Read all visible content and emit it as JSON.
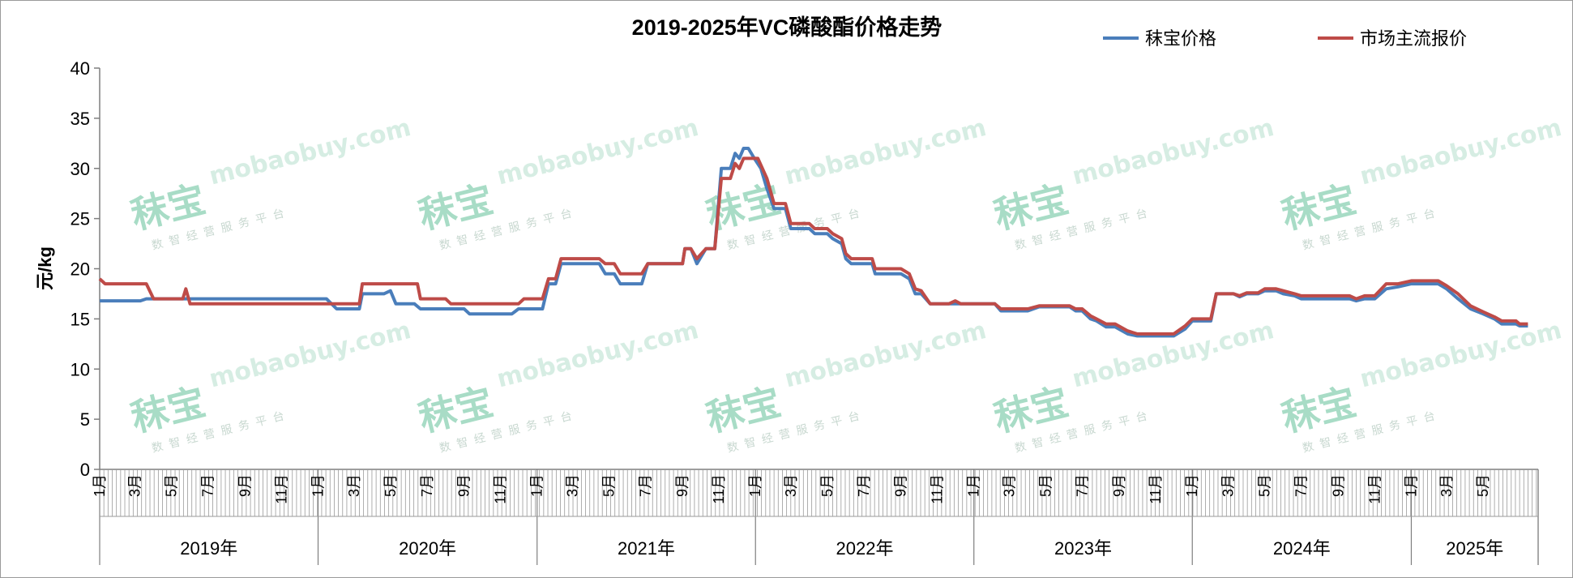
{
  "chart_data": {
    "type": "line",
    "title": "2019-2025年VC磷酸酯价格走势",
    "ylabel": "元/kg",
    "ylim": [
      0,
      40
    ],
    "yticks": [
      "0",
      "5",
      "10",
      "15",
      "20",
      "25",
      "30",
      "35",
      "40"
    ],
    "grid": false,
    "legend_position": "top-right",
    "x_month_labels": [
      "1月",
      "3月",
      "5月",
      "7月",
      "9月",
      "11月"
    ],
    "years": [
      "2019年",
      "2020年",
      "2021年",
      "2022年",
      "2023年",
      "2024年",
      "2025年"
    ],
    "x_range": [
      "2019-01",
      "2025-07"
    ],
    "series": [
      {
        "name": "秣宝价格",
        "color": "#4a7ebb",
        "points": [
          [
            "2019-01-01",
            16.8
          ],
          [
            "2019-03-10",
            16.8
          ],
          [
            "2019-03-20",
            17.0
          ],
          [
            "2019-06-01",
            17.0
          ],
          [
            "2020-01-15",
            17.0
          ],
          [
            "2020-02-01",
            16.0
          ],
          [
            "2020-03-10",
            16.0
          ],
          [
            "2020-03-15",
            17.5
          ],
          [
            "2020-04-20",
            17.5
          ],
          [
            "2020-05-01",
            17.8
          ],
          [
            "2020-05-10",
            16.5
          ],
          [
            "2020-06-10",
            16.5
          ],
          [
            "2020-06-20",
            16.0
          ],
          [
            "2020-09-01",
            16.0
          ],
          [
            "2020-09-10",
            15.5
          ],
          [
            "2020-11-20",
            15.5
          ],
          [
            "2020-12-01",
            16.0
          ],
          [
            "2021-01-10",
            16.0
          ],
          [
            "2021-01-20",
            18.5
          ],
          [
            "2021-02-01",
            18.5
          ],
          [
            "2021-02-10",
            20.5
          ],
          [
            "2021-04-15",
            20.5
          ],
          [
            "2021-04-25",
            19.5
          ],
          [
            "2021-05-10",
            19.5
          ],
          [
            "2021-05-20",
            18.5
          ],
          [
            "2021-06-25",
            18.5
          ],
          [
            "2021-07-05",
            20.5
          ],
          [
            "2021-09-01",
            20.5
          ],
          [
            "2021-09-05",
            22.0
          ],
          [
            "2021-09-15",
            22.0
          ],
          [
            "2021-09-25",
            20.5
          ],
          [
            "2021-10-10",
            22.0
          ],
          [
            "2021-10-25",
            22.0
          ],
          [
            "2021-11-05",
            30.0
          ],
          [
            "2021-11-20",
            30.0
          ],
          [
            "2021-11-28",
            31.5
          ],
          [
            "2021-12-05",
            31.0
          ],
          [
            "2021-12-12",
            32.0
          ],
          [
            "2021-12-20",
            32.0
          ],
          [
            "2021-12-30",
            31.0
          ],
          [
            "2022-01-10",
            30.0
          ],
          [
            "2022-01-20",
            28.0
          ],
          [
            "2022-02-01",
            26.0
          ],
          [
            "2022-02-20",
            26.0
          ],
          [
            "2022-03-01",
            24.0
          ],
          [
            "2022-04-01",
            24.0
          ],
          [
            "2022-04-10",
            23.5
          ],
          [
            "2022-05-01",
            23.5
          ],
          [
            "2022-05-10",
            23.0
          ],
          [
            "2022-05-25",
            22.5
          ],
          [
            "2022-06-01",
            21.0
          ],
          [
            "2022-06-10",
            20.5
          ],
          [
            "2022-07-15",
            20.5
          ],
          [
            "2022-07-20",
            19.5
          ],
          [
            "2022-09-01",
            19.5
          ],
          [
            "2022-09-15",
            19.0
          ],
          [
            "2022-09-25",
            17.5
          ],
          [
            "2022-10-05",
            17.5
          ],
          [
            "2022-10-20",
            16.5
          ],
          [
            "2022-11-20",
            16.5
          ],
          [
            "2022-12-01",
            16.5
          ],
          [
            "2023-02-05",
            16.5
          ],
          [
            "2023-02-15",
            15.8
          ],
          [
            "2023-04-01",
            15.8
          ],
          [
            "2023-04-20",
            16.2
          ],
          [
            "2023-06-10",
            16.2
          ],
          [
            "2023-06-20",
            15.8
          ],
          [
            "2023-07-01",
            15.8
          ],
          [
            "2023-07-15",
            15.0
          ],
          [
            "2023-07-25",
            14.8
          ],
          [
            "2023-08-10",
            14.2
          ],
          [
            "2023-08-25",
            14.2
          ],
          [
            "2023-09-15",
            13.5
          ],
          [
            "2023-10-01",
            13.3
          ],
          [
            "2023-12-01",
            13.3
          ],
          [
            "2023-12-20",
            14.0
          ],
          [
            "2024-01-01",
            14.8
          ],
          [
            "2024-02-01",
            14.8
          ],
          [
            "2024-02-10",
            17.5
          ],
          [
            "2024-03-10",
            17.5
          ],
          [
            "2024-03-20",
            17.2
          ],
          [
            "2024-04-01",
            17.5
          ],
          [
            "2024-04-20",
            17.5
          ],
          [
            "2024-05-01",
            17.8
          ],
          [
            "2024-05-20",
            17.8
          ],
          [
            "2024-06-01",
            17.5
          ],
          [
            "2024-06-20",
            17.3
          ],
          [
            "2024-07-01",
            17.0
          ],
          [
            "2024-09-20",
            17.0
          ],
          [
            "2024-10-01",
            16.8
          ],
          [
            "2024-10-15",
            17.0
          ],
          [
            "2024-11-01",
            17.0
          ],
          [
            "2024-11-20",
            18.0
          ],
          [
            "2024-12-10",
            18.2
          ],
          [
            "2025-01-01",
            18.5
          ],
          [
            "2025-02-15",
            18.5
          ],
          [
            "2025-03-01",
            18.0
          ],
          [
            "2025-03-20",
            17.0
          ],
          [
            "2025-04-10",
            16.0
          ],
          [
            "2025-05-01",
            15.5
          ],
          [
            "2025-05-20",
            15.0
          ],
          [
            "2025-06-01",
            14.5
          ],
          [
            "2025-06-25",
            14.5
          ],
          [
            "2025-07-01",
            14.3
          ],
          [
            "2025-07-15",
            14.3
          ]
        ]
      },
      {
        "name": "市场主流报价",
        "color": "#be4b48",
        "points": [
          [
            "2019-01-01",
            19.0
          ],
          [
            "2019-01-10",
            18.5
          ],
          [
            "2019-03-20",
            18.5
          ],
          [
            "2019-04-01",
            17.0
          ],
          [
            "2019-05-20",
            17.0
          ],
          [
            "2019-05-25",
            18.0
          ],
          [
            "2019-06-01",
            16.5
          ],
          [
            "2020-02-01",
            16.5
          ],
          [
            "2020-03-10",
            16.5
          ],
          [
            "2020-03-15",
            18.5
          ],
          [
            "2020-06-15",
            18.5
          ],
          [
            "2020-06-20",
            17.0
          ],
          [
            "2020-08-01",
            17.0
          ],
          [
            "2020-08-10",
            16.5
          ],
          [
            "2020-12-01",
            16.5
          ],
          [
            "2020-12-10",
            17.0
          ],
          [
            "2021-01-10",
            17.0
          ],
          [
            "2021-01-20",
            19.0
          ],
          [
            "2021-02-01",
            19.0
          ],
          [
            "2021-02-10",
            21.0
          ],
          [
            "2021-04-15",
            21.0
          ],
          [
            "2021-04-25",
            20.5
          ],
          [
            "2021-05-10",
            20.5
          ],
          [
            "2021-05-20",
            19.5
          ],
          [
            "2021-06-25",
            19.5
          ],
          [
            "2021-07-05",
            20.5
          ],
          [
            "2021-09-01",
            20.5
          ],
          [
            "2021-09-05",
            22.0
          ],
          [
            "2021-09-15",
            22.0
          ],
          [
            "2021-09-25",
            21.0
          ],
          [
            "2021-10-10",
            22.0
          ],
          [
            "2021-10-25",
            22.0
          ],
          [
            "2021-11-05",
            29.0
          ],
          [
            "2021-11-20",
            29.0
          ],
          [
            "2021-11-28",
            30.5
          ],
          [
            "2021-12-05",
            30.0
          ],
          [
            "2021-12-12",
            31.0
          ],
          [
            "2022-01-05",
            31.0
          ],
          [
            "2022-01-20",
            29.0
          ],
          [
            "2022-02-01",
            26.5
          ],
          [
            "2022-02-20",
            26.5
          ],
          [
            "2022-03-01",
            24.5
          ],
          [
            "2022-04-01",
            24.5
          ],
          [
            "2022-04-10",
            24.0
          ],
          [
            "2022-05-01",
            24.0
          ],
          [
            "2022-05-10",
            23.5
          ],
          [
            "2022-05-25",
            23.0
          ],
          [
            "2022-06-01",
            21.5
          ],
          [
            "2022-06-10",
            21.0
          ],
          [
            "2022-07-15",
            21.0
          ],
          [
            "2022-07-20",
            20.0
          ],
          [
            "2022-09-01",
            20.0
          ],
          [
            "2022-09-15",
            19.5
          ],
          [
            "2022-09-25",
            18.0
          ],
          [
            "2022-10-05",
            17.8
          ],
          [
            "2022-10-20",
            16.5
          ],
          [
            "2022-11-20",
            16.5
          ],
          [
            "2022-12-01",
            16.8
          ],
          [
            "2022-12-10",
            16.5
          ],
          [
            "2023-02-05",
            16.5
          ],
          [
            "2023-02-15",
            16.0
          ],
          [
            "2023-04-01",
            16.0
          ],
          [
            "2023-04-20",
            16.3
          ],
          [
            "2023-06-10",
            16.3
          ],
          [
            "2023-06-20",
            16.0
          ],
          [
            "2023-07-01",
            16.0
          ],
          [
            "2023-07-15",
            15.3
          ],
          [
            "2023-07-25",
            15.0
          ],
          [
            "2023-08-10",
            14.5
          ],
          [
            "2023-08-25",
            14.5
          ],
          [
            "2023-09-15",
            13.8
          ],
          [
            "2023-10-01",
            13.5
          ],
          [
            "2023-12-01",
            13.5
          ],
          [
            "2023-12-20",
            14.3
          ],
          [
            "2024-01-01",
            15.0
          ],
          [
            "2024-02-01",
            15.0
          ],
          [
            "2024-02-10",
            17.5
          ],
          [
            "2024-03-10",
            17.5
          ],
          [
            "2024-03-20",
            17.3
          ],
          [
            "2024-04-01",
            17.6
          ],
          [
            "2024-04-20",
            17.6
          ],
          [
            "2024-05-01",
            18.0
          ],
          [
            "2024-05-20",
            18.0
          ],
          [
            "2024-06-01",
            17.8
          ],
          [
            "2024-06-20",
            17.5
          ],
          [
            "2024-07-01",
            17.3
          ],
          [
            "2024-09-20",
            17.3
          ],
          [
            "2024-10-01",
            17.0
          ],
          [
            "2024-10-15",
            17.3
          ],
          [
            "2024-11-01",
            17.3
          ],
          [
            "2024-11-20",
            18.5
          ],
          [
            "2024-12-10",
            18.5
          ],
          [
            "2025-01-01",
            18.8
          ],
          [
            "2025-02-15",
            18.8
          ],
          [
            "2025-03-01",
            18.3
          ],
          [
            "2025-03-20",
            17.5
          ],
          [
            "2025-04-10",
            16.3
          ],
          [
            "2025-05-01",
            15.7
          ],
          [
            "2025-05-20",
            15.2
          ],
          [
            "2025-06-01",
            14.8
          ],
          [
            "2025-06-25",
            14.8
          ],
          [
            "2025-07-01",
            14.5
          ],
          [
            "2025-07-15",
            14.5
          ]
        ]
      }
    ]
  },
  "watermark": {
    "brand": "秣宝",
    "url": "mobaobuy.com",
    "subtitle": "数智经营服务平台"
  }
}
